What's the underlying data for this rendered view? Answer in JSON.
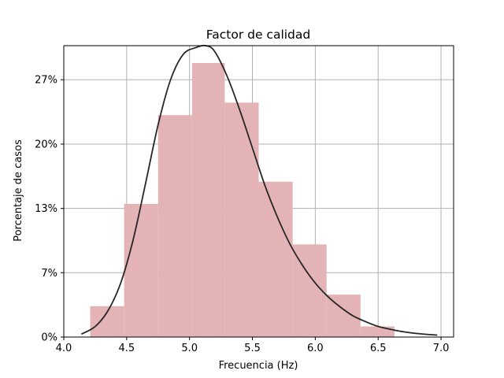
{
  "chart_data": {
    "type": "bar",
    "title": "Factor de calidad",
    "xlabel": "Frecuencia (Hz)",
    "ylabel": "Porcentaje de casos",
    "xlim": [
      4.0,
      7.1
    ],
    "ylim": [
      0,
      30.2
    ],
    "x_ticks": [
      4.0,
      4.5,
      5.0,
      5.5,
      6.0,
      6.5,
      7.0
    ],
    "x_tick_labels": [
      "4.0",
      "4.5",
      "5.0",
      "5.5",
      "6.0",
      "6.5",
      "7.0"
    ],
    "y_ticks": [
      0,
      6.67,
      13.33,
      20,
      26.67
    ],
    "y_tick_labels": [
      "0%",
      "7%",
      "13%",
      "20%",
      "27%"
    ],
    "grid": true,
    "bins": [
      {
        "x0": 4.21,
        "x1": 4.48,
        "value": 3.2
      },
      {
        "x0": 4.48,
        "x1": 4.75,
        "value": 13.8
      },
      {
        "x0": 4.75,
        "x1": 5.02,
        "value": 23.0
      },
      {
        "x0": 5.02,
        "x1": 5.28,
        "value": 28.4
      },
      {
        "x0": 5.28,
        "x1": 5.55,
        "value": 24.3
      },
      {
        "x0": 5.55,
        "x1": 5.82,
        "value": 16.1
      },
      {
        "x0": 5.82,
        "x1": 6.09,
        "value": 9.6
      },
      {
        "x0": 6.09,
        "x1": 6.36,
        "value": 4.4
      },
      {
        "x0": 6.36,
        "x1": 6.63,
        "value": 1.1
      }
    ],
    "curve": {
      "x": [
        4.14,
        4.25,
        4.35,
        4.45,
        4.55,
        4.65,
        4.75,
        4.85,
        4.95,
        5.05,
        5.13,
        5.2,
        5.3,
        5.4,
        5.5,
        5.6,
        5.7,
        5.8,
        5.9,
        6.0,
        6.1,
        6.2,
        6.3,
        6.4,
        6.5,
        6.6,
        6.7,
        6.8,
        6.97
      ],
      "y": [
        0.3,
        1.1,
        2.7,
        5.5,
        10.0,
        15.9,
        22.0,
        26.7,
        29.3,
        30.0,
        30.2,
        29.6,
        27.0,
        23.5,
        19.6,
        15.7,
        12.4,
        9.6,
        7.4,
        5.6,
        4.2,
        3.1,
        2.2,
        1.6,
        1.1,
        0.8,
        0.55,
        0.38,
        0.2
      ]
    },
    "colors": {
      "bars": "#e3b3b6",
      "curve": "#272727",
      "grid": "#b0b0b0",
      "axis": "#000000"
    }
  }
}
